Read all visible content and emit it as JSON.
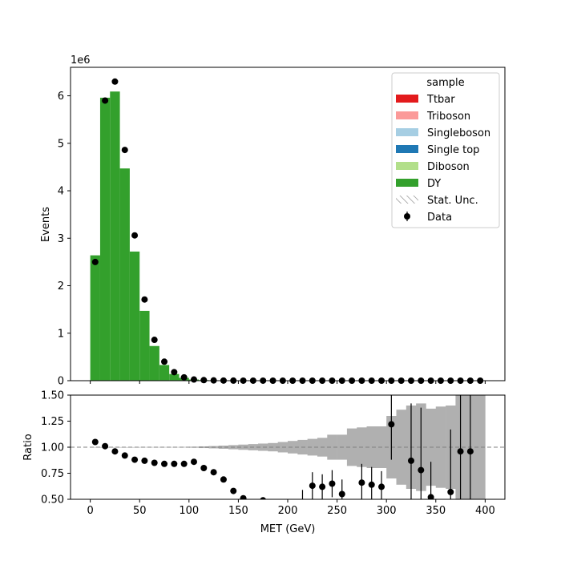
{
  "chart_data": [
    {
      "type": "bar",
      "panel": "main",
      "ylabel": "Events",
      "y_scale_label": "1e6",
      "xlim": [
        -20,
        420
      ],
      "ylim": [
        0,
        6.6
      ],
      "yticks": [
        0,
        1,
        2,
        3,
        4,
        5,
        6
      ],
      "bin_width": 10,
      "bin_edges_start": 0,
      "stacked": true,
      "series": [
        {
          "name": "Ttbar",
          "color": "#e31a1c",
          "values": []
        },
        {
          "name": "Triboson",
          "color": "#fb9a99",
          "values": []
        },
        {
          "name": "Singleboson",
          "color": "#a6cee3",
          "values": []
        },
        {
          "name": "Single top",
          "color": "#1f78b4",
          "values": []
        },
        {
          "name": "Diboson",
          "color": "#b2df8a",
          "values": []
        },
        {
          "name": "DY",
          "color": "#33a02c",
          "values": [
            2.64,
            5.96,
            6.09,
            4.47,
            2.72,
            1.47,
            0.73,
            0.33,
            0.14,
            0.06,
            0.025,
            0.012,
            0.006,
            0.003,
            0.0015,
            0.001,
            0.0008,
            0.0006,
            0.0005,
            0.0004,
            0.0003,
            0.0003,
            0.0002,
            0.0002,
            0.0002,
            0.0001,
            0.0001,
            0.0001,
            0.0001,
            0.0001,
            0.0001,
            0.0001,
            0.0001,
            0.0001,
            0.0001,
            0.0001,
            0.0001,
            0.0001,
            0.0001,
            0.0001
          ]
        }
      ],
      "data": {
        "name": "Data",
        "x": [
          5,
          15,
          25,
          35,
          45,
          55,
          65,
          75,
          85,
          95,
          105,
          115,
          125,
          135,
          145,
          155,
          165,
          175,
          185,
          195,
          205,
          215,
          225,
          235,
          245,
          255,
          265,
          275,
          285,
          295,
          305,
          315,
          325,
          335,
          345,
          355,
          365,
          375,
          385,
          395
        ],
        "y": [
          2.5,
          5.9,
          6.3,
          4.86,
          3.06,
          1.71,
          0.86,
          0.4,
          0.18,
          0.07,
          0.025,
          0.012,
          0.006,
          0.003,
          0.0015,
          0.0008,
          0.0005,
          0.0003,
          0.0002,
          0.0001,
          0.0001,
          0.0001,
          0.0001,
          0.0001,
          0.0001,
          0.0001,
          0.0001,
          0.0001,
          0.0001,
          0.0001,
          0.0001,
          0.0001,
          0.0001,
          0.0001,
          0.0001,
          0.0001,
          0.0001,
          0.0001,
          0.0001,
          0.0001
        ]
      },
      "legend": {
        "title": "sample",
        "placement": "top-right",
        "entries": [
          {
            "label": "Ttbar",
            "kind": "patch",
            "color": "#e31a1c"
          },
          {
            "label": "Triboson",
            "kind": "patch",
            "color": "#fb9a99"
          },
          {
            "label": "Singleboson",
            "kind": "patch",
            "color": "#a6cee3"
          },
          {
            "label": "Single top",
            "kind": "patch",
            "color": "#1f78b4"
          },
          {
            "label": "Diboson",
            "kind": "patch",
            "color": "#b2df8a"
          },
          {
            "label": "DY",
            "kind": "patch",
            "color": "#33a02c"
          },
          {
            "label": "Stat. Unc.",
            "kind": "hatch",
            "color": "#808080"
          },
          {
            "label": "Data",
            "kind": "errorbar",
            "color": "#000000"
          }
        ]
      }
    },
    {
      "type": "scatter",
      "panel": "ratio",
      "xlabel": "MET (GeV)",
      "ylabel": "Ratio",
      "xlim": [
        -20,
        420
      ],
      "ylim": [
        0.5,
        1.5
      ],
      "xticks": [
        0,
        50,
        100,
        150,
        200,
        250,
        300,
        350,
        400
      ],
      "yticks": [
        0.5,
        0.75,
        1.0,
        1.25,
        1.5
      ],
      "ytick_labels": [
        "0.50",
        "0.75",
        "1.00",
        "1.25",
        "1.50"
      ],
      "reference_line": 1.0,
      "uncertainty_band": {
        "color": "#b0b0b0",
        "bin_width": 10,
        "bin_edges_start": 0,
        "half_width": [
          0.001,
          0.001,
          0.001,
          0.001,
          0.001,
          0.002,
          0.002,
          0.002,
          0.002,
          0.003,
          0.005,
          0.008,
          0.011,
          0.015,
          0.02,
          0.025,
          0.03,
          0.035,
          0.04,
          0.05,
          0.06,
          0.07,
          0.08,
          0.09,
          0.12,
          0.12,
          0.18,
          0.19,
          0.2,
          0.2,
          0.3,
          0.36,
          0.4,
          0.42,
          0.37,
          0.39,
          0.4,
          0.5,
          0.5,
          0.5
        ]
      },
      "data": {
        "x": [
          5,
          15,
          25,
          35,
          45,
          55,
          65,
          75,
          85,
          95,
          105,
          115,
          125,
          135,
          145,
          155,
          175,
          215,
          225,
          235,
          245,
          255,
          275,
          285,
          295,
          305,
          325,
          335,
          345,
          365,
          375,
          385
        ],
        "y": [
          1.05,
          1.01,
          0.96,
          0.92,
          0.88,
          0.87,
          0.85,
          0.84,
          0.84,
          0.84,
          0.86,
          0.8,
          0.76,
          0.69,
          0.58,
          0.51,
          0.49,
          0.47,
          0.63,
          0.62,
          0.65,
          0.55,
          0.66,
          0.64,
          0.62,
          1.22,
          0.87,
          0.78,
          0.52,
          0.57,
          0.96,
          0.96
        ],
        "err": [
          0.002,
          0.002,
          0.002,
          0.002,
          0.003,
          0.003,
          0.004,
          0.005,
          0.007,
          0.01,
          0.012,
          0.015,
          0.018,
          0.02,
          0.02,
          0.02,
          0.02,
          0.12,
          0.13,
          0.12,
          0.13,
          0.14,
          0.18,
          0.17,
          0.15,
          0.34,
          0.55,
          0.6,
          0.34,
          0.6,
          0.75,
          0.75
        ]
      }
    }
  ]
}
